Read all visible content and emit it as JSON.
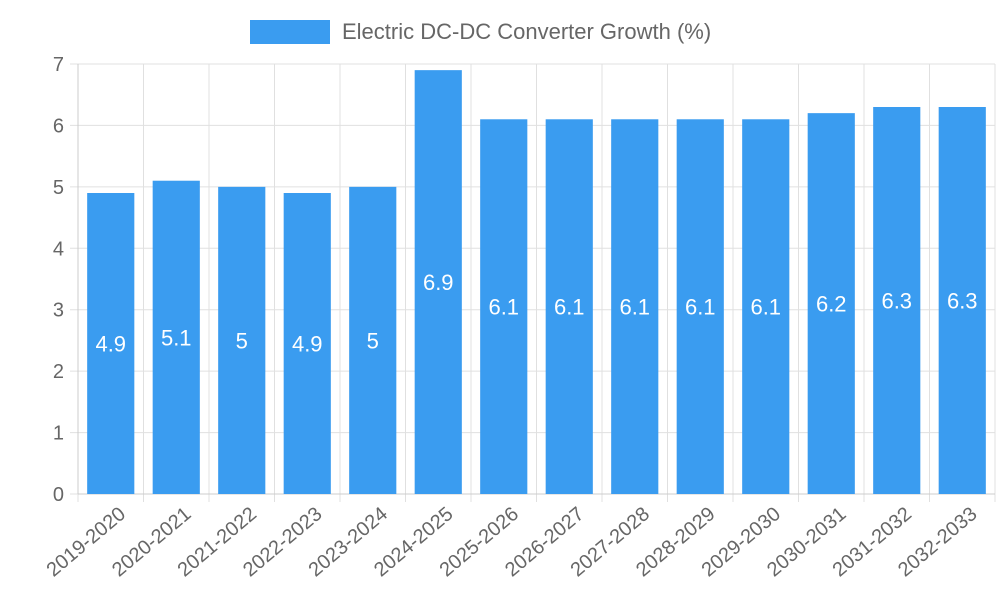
{
  "chart_data": {
    "type": "bar",
    "title": "",
    "xlabel": "",
    "ylabel": "",
    "categories": [
      "2019-2020",
      "2020-2021",
      "2021-2022",
      "2022-2023",
      "2023-2024",
      "2024-2025",
      "2025-2026",
      "2026-2027",
      "2027-2028",
      "2028-2029",
      "2029-2030",
      "2030-2031",
      "2031-2032",
      "2032-2033"
    ],
    "series": [
      {
        "name": "Electric DC-DC Converter Growth (%)",
        "values": [
          4.9,
          5.1,
          5,
          4.9,
          5,
          6.9,
          6.1,
          6.1,
          6.1,
          6.1,
          6.1,
          6.2,
          6.3,
          6.3
        ],
        "color": "#3a9cf0"
      }
    ],
    "data_labels": [
      "4.9",
      "5.1",
      "5",
      "4.9",
      "5",
      "6.9",
      "6.1",
      "6.1",
      "6.1",
      "6.1",
      "6.1",
      "6.2",
      "6.3",
      "6.3"
    ],
    "ylim": [
      0,
      7
    ],
    "yticks": [
      "0",
      "1",
      "2",
      "3",
      "4",
      "5",
      "6",
      "7"
    ],
    "grid": true,
    "legend_position": "top-center"
  }
}
